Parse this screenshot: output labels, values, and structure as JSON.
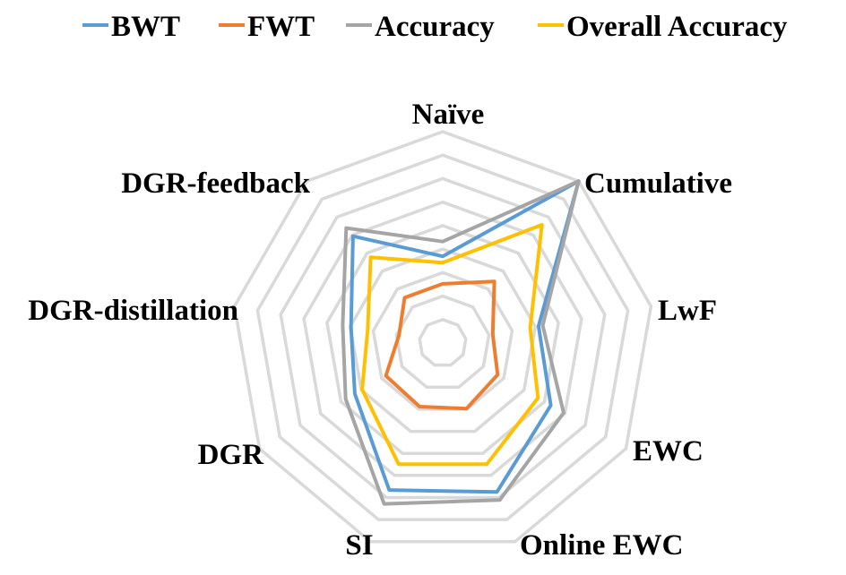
{
  "chart_data": {
    "type": "radar",
    "title": "",
    "categories": [
      "Naïve",
      "Cumulative",
      "LwF",
      "EWC",
      "Online EWC",
      "SI",
      "DGR",
      "DGR-distillation",
      "DGR-feedback"
    ],
    "rlim": [
      0,
      1
    ],
    "grid": true,
    "grid_levels": 9,
    "legend_position": "top",
    "series": [
      {
        "name": "BWT",
        "color": "#5B9BD5",
        "values": [
          0.41,
          1.0,
          0.46,
          0.59,
          0.75,
          0.74,
          0.48,
          0.44,
          0.66
        ]
      },
      {
        "name": "FWT",
        "color": "#ED7D31",
        "values": [
          0.28,
          0.38,
          0.24,
          0.3,
          0.33,
          0.32,
          0.31,
          0.21,
          0.28
        ]
      },
      {
        "name": "Accuracy",
        "color": "#A5A5A5",
        "values": [
          0.48,
          1.0,
          0.48,
          0.66,
          0.79,
          0.81,
          0.53,
          0.48,
          0.71
        ]
      },
      {
        "name": "Overall Accuracy",
        "color": "#FFC000",
        "values": [
          0.38,
          0.73,
          0.42,
          0.52,
          0.61,
          0.61,
          0.44,
          0.36,
          0.53
        ]
      }
    ]
  }
}
